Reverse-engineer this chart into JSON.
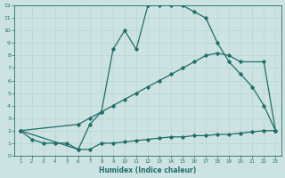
{
  "xlabel": "Humidex (Indice chaleur)",
  "xlim": [
    0.5,
    23.5
  ],
  "ylim": [
    0,
    12
  ],
  "xticks": [
    1,
    2,
    3,
    4,
    5,
    6,
    7,
    8,
    9,
    10,
    11,
    12,
    13,
    14,
    15,
    16,
    17,
    18,
    19,
    20,
    21,
    22,
    23
  ],
  "yticks": [
    0,
    1,
    2,
    3,
    4,
    5,
    6,
    7,
    8,
    9,
    10,
    11,
    12
  ],
  "bg_color": "#cde3e1",
  "line_color": "#1e6e6a",
  "grid_color": "#b8d4d2",
  "line1_x": [
    1,
    2,
    3,
    4,
    5,
    6,
    7,
    8,
    9,
    10,
    11,
    12,
    13,
    14,
    15,
    16,
    17,
    18,
    19,
    20,
    21,
    22,
    23
  ],
  "line1_y": [
    2,
    1.3,
    1.0,
    1.0,
    1.0,
    0.5,
    0.5,
    1.0,
    1.0,
    1.1,
    1.2,
    1.3,
    1.4,
    1.5,
    1.5,
    1.6,
    1.6,
    1.7,
    1.7,
    1.8,
    1.9,
    2.0,
    2.0
  ],
  "line2_x": [
    1,
    6,
    7,
    8,
    9,
    10,
    11,
    12,
    13,
    14,
    15,
    16,
    17,
    18,
    19,
    20,
    22,
    23
  ],
  "line2_y": [
    2,
    2.5,
    3.0,
    3.5,
    4.0,
    4.5,
    5.0,
    5.5,
    6.0,
    6.5,
    7.0,
    7.5,
    8.0,
    8.2,
    8.0,
    7.5,
    7.5,
    2.0
  ],
  "line3_x": [
    1,
    6,
    7,
    8,
    9,
    10,
    11,
    12,
    13,
    14,
    15,
    16,
    17,
    18,
    19,
    20,
    21,
    22,
    23
  ],
  "line3_y": [
    2,
    0.5,
    2.5,
    3.5,
    8.5,
    10.0,
    8.5,
    12.0,
    12.0,
    12.0,
    12.0,
    11.5,
    11.0,
    9.0,
    7.5,
    6.5,
    5.5,
    4.0,
    2.0
  ]
}
